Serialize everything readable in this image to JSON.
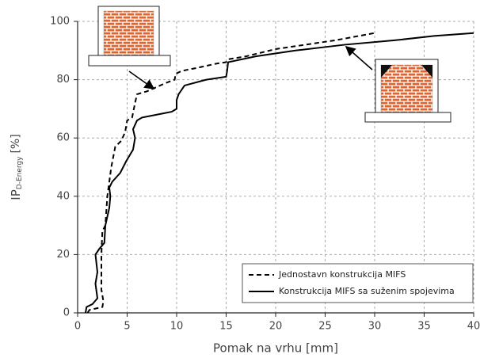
{
  "chart_data": {
    "type": "line",
    "xlabel": "Pomak na vrhu [mm]",
    "ylabel": "IP",
    "ylabel_sub": "D-Energy",
    "ylabel_unit": "[%]",
    "xlim": [
      0,
      40
    ],
    "xticks": [
      0,
      5,
      10,
      15,
      20,
      25,
      30,
      35,
      40
    ],
    "ylim": [
      0,
      100
    ],
    "yticks": [
      0,
      20,
      40,
      60,
      80,
      100
    ],
    "grid": true,
    "legend": "lower right",
    "series": [
      {
        "name": "Jednostavn konstrukcija MIFS",
        "color": "#000000",
        "dash": true,
        "x": [
          1.0,
          1.2,
          2.5,
          2.6,
          2.4,
          2.4,
          2.5,
          2.8,
          3.0,
          3.4,
          3.8,
          4.4,
          4.8,
          5.0,
          5.5,
          5.8,
          6.0,
          7,
          8,
          9,
          9.8,
          9.9,
          10.5,
          12,
          14,
          15,
          15.2,
          17,
          20,
          23,
          26,
          30
        ],
        "values": [
          0,
          1,
          2,
          4,
          8,
          20,
          28,
          30,
          40,
          50,
          57,
          59,
          62,
          66,
          67,
          72,
          75,
          76,
          77.5,
          79,
          80,
          82,
          83,
          84,
          85.5,
          86,
          87,
          88,
          90.5,
          92,
          93.5,
          96
        ]
      },
      {
        "name": "Konstrukcija MIFS sa suženim spojevima",
        "color": "#000000",
        "dash": false,
        "x": [
          0.8,
          0.9,
          1.5,
          2.0,
          1.8,
          2.0,
          1.8,
          2.2,
          2.7,
          2.8,
          3.2,
          3.3,
          3.2,
          3.5,
          4.3,
          4.9,
          5.6,
          5.8,
          5.6,
          6,
          6.5,
          8,
          9.5,
          10,
          10,
          10.2,
          10.8,
          13,
          15,
          15.1,
          15.2,
          18,
          22,
          27,
          32,
          36,
          40
        ],
        "values": [
          0,
          2,
          3,
          5,
          10,
          14,
          20,
          22,
          24,
          30,
          36,
          40,
          43,
          45,
          48,
          52,
          56,
          60,
          63,
          66,
          67,
          68,
          69,
          70,
          73,
          75,
          78,
          80,
          81,
          83,
          86,
          88,
          90,
          92,
          93.5,
          95,
          96
        ]
      }
    ]
  }
}
